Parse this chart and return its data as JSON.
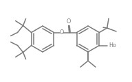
{
  "bg_color": "#ffffff",
  "line_color": "#7a7a7a",
  "lw": 1.1,
  "figsize": [
    1.92,
    1.2
  ],
  "dpi": 100,
  "font_size": 5.8,
  "xlim": [
    0,
    192
  ],
  "ylim": [
    0,
    120
  ]
}
